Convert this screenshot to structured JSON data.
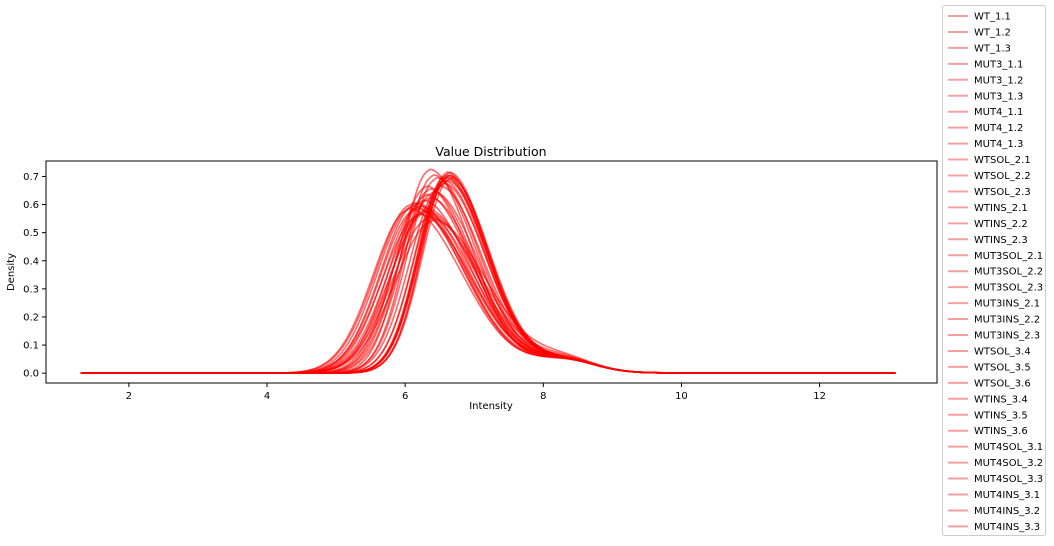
{
  "chart_data": {
    "type": "line",
    "title": "Value Distribution",
    "xlabel": "Intensity",
    "ylabel": "Density",
    "xlim": [
      0.8,
      13.7
    ],
    "ylim": [
      -0.035,
      0.755
    ],
    "xticks": [
      2,
      4,
      6,
      8,
      10,
      12
    ],
    "yticks": [
      0.0,
      0.1,
      0.2,
      0.3,
      0.4,
      0.5,
      0.6,
      0.7
    ],
    "ytick_labels": [
      "0.0",
      "0.1",
      "0.2",
      "0.3",
      "0.4",
      "0.5",
      "0.6",
      "0.7"
    ],
    "grid": false,
    "legend_position": "right, outside plot",
    "line_color": "#ff0000",
    "legend_line_color": "#f4a0a0",
    "x_range": [
      1.3,
      13.1
    ],
    "series": [
      {
        "name": "WT_1.1",
        "mode": 6.35,
        "peak": 0.72,
        "w_left": 0.4,
        "w_right": 0.62
      },
      {
        "name": "WT_1.2",
        "mode": 6.4,
        "peak": 0.7,
        "w_left": 0.4,
        "w_right": 0.64
      },
      {
        "name": "WT_1.3",
        "mode": 6.45,
        "peak": 0.69,
        "w_left": 0.42,
        "w_right": 0.63
      },
      {
        "name": "MUT3_1.1",
        "mode": 6.3,
        "peak": 0.66,
        "w_left": 0.44,
        "w_right": 0.66
      },
      {
        "name": "MUT3_1.2",
        "mode": 6.35,
        "peak": 0.65,
        "w_left": 0.44,
        "w_right": 0.66
      },
      {
        "name": "MUT3_1.3",
        "mode": 6.4,
        "peak": 0.64,
        "w_left": 0.45,
        "w_right": 0.67
      },
      {
        "name": "MUT4_1.1",
        "mode": 6.3,
        "peak": 0.63,
        "w_left": 0.46,
        "w_right": 0.68
      },
      {
        "name": "MUT4_1.2",
        "mode": 6.35,
        "peak": 0.62,
        "w_left": 0.46,
        "w_right": 0.68
      },
      {
        "name": "MUT4_1.3",
        "mode": 6.25,
        "peak": 0.61,
        "w_left": 0.48,
        "w_right": 0.7
      },
      {
        "name": "WTSOL_2.1",
        "mode": 6.15,
        "peak": 0.6,
        "w_left": 0.5,
        "w_right": 0.72
      },
      {
        "name": "WTSOL_2.2",
        "mode": 6.1,
        "peak": 0.6,
        "w_left": 0.52,
        "w_right": 0.74
      },
      {
        "name": "WTSOL_2.3",
        "mode": 6.2,
        "peak": 0.59,
        "w_left": 0.5,
        "w_right": 0.73
      },
      {
        "name": "WTINS_2.1",
        "mode": 6.3,
        "peak": 0.58,
        "w_left": 0.5,
        "w_right": 0.72
      },
      {
        "name": "WTINS_2.2",
        "mode": 6.25,
        "peak": 0.57,
        "w_left": 0.51,
        "w_right": 0.74
      },
      {
        "name": "WTINS_2.3",
        "mode": 6.2,
        "peak": 0.56,
        "w_left": 0.52,
        "w_right": 0.75
      },
      {
        "name": "MUT3SOL_2.1",
        "mode": 6.35,
        "peak": 0.55,
        "w_left": 0.53,
        "w_right": 0.76
      },
      {
        "name": "MUT3SOL_2.2",
        "mode": 6.4,
        "peak": 0.54,
        "w_left": 0.54,
        "w_right": 0.77
      },
      {
        "name": "MUT3SOL_2.3",
        "mode": 6.3,
        "peak": 0.57,
        "w_left": 0.52,
        "w_right": 0.75
      },
      {
        "name": "MUT3INS_2.1",
        "mode": 6.1,
        "peak": 0.59,
        "w_left": 0.5,
        "w_right": 0.76
      },
      {
        "name": "MUT3INS_2.2",
        "mode": 6.05,
        "peak": 0.58,
        "w_left": 0.51,
        "w_right": 0.77
      },
      {
        "name": "MUT3INS_2.3",
        "mode": 6.15,
        "peak": 0.58,
        "w_left": 0.5,
        "w_right": 0.76
      },
      {
        "name": "WTSOL_3.4",
        "mode": 6.6,
        "peak": 0.71,
        "w_left": 0.4,
        "w_right": 0.58
      },
      {
        "name": "WTSOL_3.5",
        "mode": 6.62,
        "peak": 0.7,
        "w_left": 0.41,
        "w_right": 0.59
      },
      {
        "name": "WTSOL_3.6",
        "mode": 6.58,
        "peak": 0.7,
        "w_left": 0.4,
        "w_right": 0.6
      },
      {
        "name": "WTINS_3.4",
        "mode": 6.65,
        "peak": 0.69,
        "w_left": 0.4,
        "w_right": 0.58
      },
      {
        "name": "WTINS_3.5",
        "mode": 6.6,
        "peak": 0.68,
        "w_left": 0.41,
        "w_right": 0.6
      },
      {
        "name": "WTINS_3.6",
        "mode": 6.55,
        "peak": 0.68,
        "w_left": 0.42,
        "w_right": 0.61
      },
      {
        "name": "MUT4SOL_3.1",
        "mode": 6.62,
        "peak": 0.7,
        "w_left": 0.39,
        "w_right": 0.58
      },
      {
        "name": "MUT4SOL_3.2",
        "mode": 6.58,
        "peak": 0.69,
        "w_left": 0.4,
        "w_right": 0.59
      },
      {
        "name": "MUT4SOL_3.3",
        "mode": 6.63,
        "peak": 0.71,
        "w_left": 0.39,
        "w_right": 0.57
      },
      {
        "name": "MUT4INS_3.1",
        "mode": 6.55,
        "peak": 0.67,
        "w_left": 0.42,
        "w_right": 0.62
      },
      {
        "name": "MUT4INS_3.2",
        "mode": 6.5,
        "peak": 0.66,
        "w_left": 0.43,
        "w_right": 0.63
      },
      {
        "name": "MUT4INS_3.3",
        "mode": 6.6,
        "peak": 0.69,
        "w_left": 0.4,
        "w_right": 0.59
      }
    ]
  }
}
